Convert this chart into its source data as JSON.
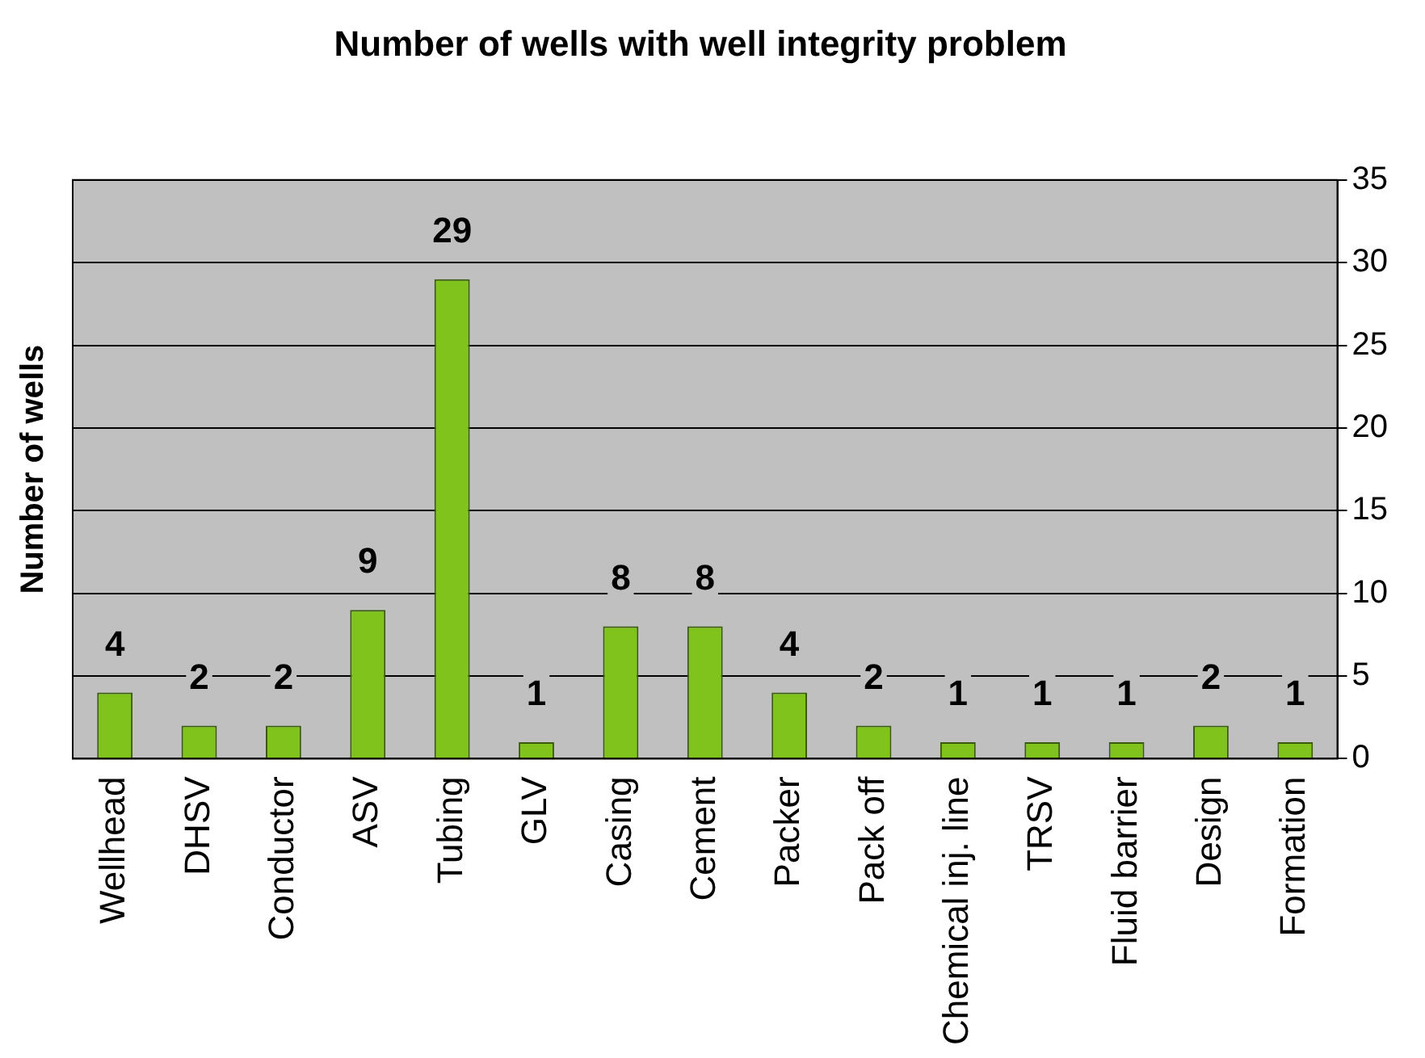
{
  "chart_data": {
    "type": "bar",
    "title": "Number of wells with well integrity problem",
    "ylabel": "Number of wells",
    "categories": [
      "Wellhead",
      "DHSV",
      "Conductor",
      "ASV",
      "Tubing",
      "GLV",
      "Casing",
      "Cement",
      "Packer",
      "Pack off",
      "Chemical inj. line",
      "TRSV",
      "Fluid barrier",
      "Design",
      "Formation"
    ],
    "values": [
      4,
      2,
      2,
      9,
      29,
      1,
      8,
      8,
      4,
      2,
      1,
      1,
      1,
      2,
      1
    ],
    "color": "#7fc31c",
    "ylim": [
      0,
      35
    ],
    "yticks": [
      0,
      5,
      10,
      15,
      20,
      25,
      30,
      35
    ],
    "grid": "y",
    "data_labels": true,
    "legend": false
  }
}
